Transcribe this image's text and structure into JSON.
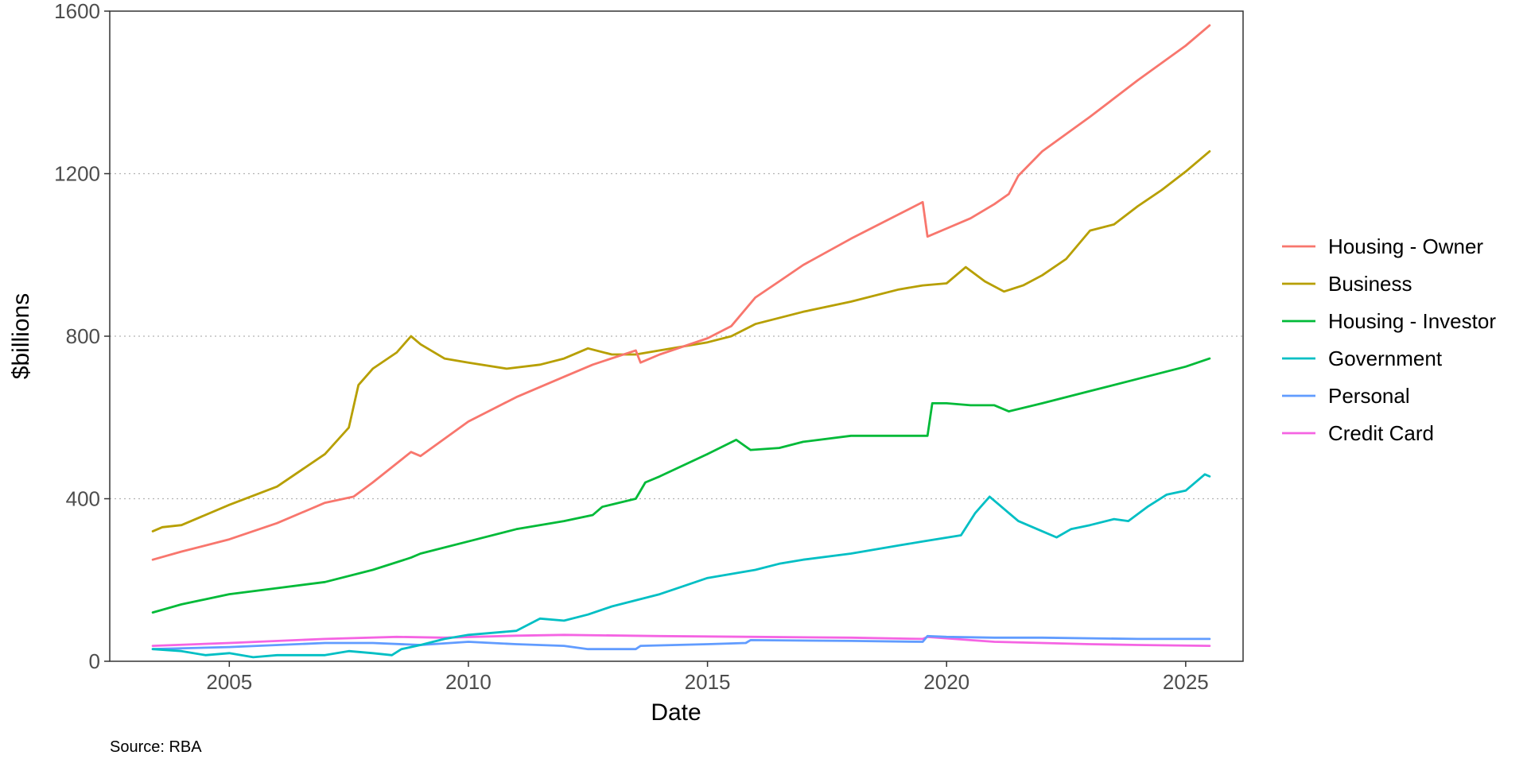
{
  "chart_data": {
    "type": "line",
    "title": "",
    "xlabel": "Date",
    "ylabel": "$billions",
    "caption": "Source: RBA",
    "xlim": [
      2002.5,
      2026.2
    ],
    "ylim": [
      0,
      1600
    ],
    "x_ticks": [
      2005,
      2010,
      2015,
      2020,
      2025
    ],
    "y_ticks": [
      0,
      400,
      800,
      1200,
      1600
    ],
    "grid": {
      "major_y": true,
      "style": "dotted"
    },
    "legend": {
      "position": "right"
    },
    "series": [
      {
        "name": "Housing - Owner",
        "color": "#F8766D",
        "points": [
          [
            2003.4,
            250
          ],
          [
            2004.0,
            270
          ],
          [
            2005.0,
            300
          ],
          [
            2006.0,
            340
          ],
          [
            2007.0,
            390
          ],
          [
            2007.6,
            405
          ],
          [
            2008.0,
            440
          ],
          [
            2008.8,
            515
          ],
          [
            2009.0,
            505
          ],
          [
            2010.0,
            590
          ],
          [
            2011.0,
            650
          ],
          [
            2012.0,
            700
          ],
          [
            2012.6,
            730
          ],
          [
            2013.5,
            765
          ],
          [
            2013.6,
            735
          ],
          [
            2014.0,
            755
          ],
          [
            2015.0,
            795
          ],
          [
            2015.5,
            825
          ],
          [
            2016.0,
            895
          ],
          [
            2016.5,
            935
          ],
          [
            2017.0,
            975
          ],
          [
            2018.0,
            1040
          ],
          [
            2019.0,
            1100
          ],
          [
            2019.5,
            1130
          ],
          [
            2019.6,
            1045
          ],
          [
            2020.0,
            1065
          ],
          [
            2020.5,
            1090
          ],
          [
            2021.0,
            1125
          ],
          [
            2021.3,
            1150
          ],
          [
            2021.5,
            1195
          ],
          [
            2022.0,
            1255
          ],
          [
            2023.0,
            1340
          ],
          [
            2024.0,
            1430
          ],
          [
            2025.0,
            1515
          ],
          [
            2025.5,
            1565
          ]
        ]
      },
      {
        "name": "Business",
        "color": "#B79F00",
        "points": [
          [
            2003.4,
            320
          ],
          [
            2003.6,
            330
          ],
          [
            2004.0,
            335
          ],
          [
            2005.0,
            385
          ],
          [
            2006.0,
            430
          ],
          [
            2007.0,
            510
          ],
          [
            2007.5,
            575
          ],
          [
            2007.7,
            680
          ],
          [
            2008.0,
            720
          ],
          [
            2008.5,
            760
          ],
          [
            2008.8,
            800
          ],
          [
            2009.0,
            780
          ],
          [
            2009.5,
            745
          ],
          [
            2010.0,
            735
          ],
          [
            2010.8,
            720
          ],
          [
            2011.5,
            730
          ],
          [
            2012.0,
            745
          ],
          [
            2012.5,
            770
          ],
          [
            2013.0,
            755
          ],
          [
            2013.5,
            755
          ],
          [
            2014.0,
            765
          ],
          [
            2015.0,
            785
          ],
          [
            2015.5,
            800
          ],
          [
            2016.0,
            830
          ],
          [
            2017.0,
            860
          ],
          [
            2018.0,
            885
          ],
          [
            2019.0,
            915
          ],
          [
            2019.5,
            925
          ],
          [
            2020.0,
            930
          ],
          [
            2020.4,
            970
          ],
          [
            2020.8,
            935
          ],
          [
            2021.2,
            910
          ],
          [
            2021.6,
            925
          ],
          [
            2022.0,
            950
          ],
          [
            2022.5,
            990
          ],
          [
            2023.0,
            1060
          ],
          [
            2023.5,
            1075
          ],
          [
            2024.0,
            1120
          ],
          [
            2024.5,
            1160
          ],
          [
            2025.0,
            1205
          ],
          [
            2025.5,
            1255
          ]
        ]
      },
      {
        "name": "Housing - Investor",
        "color": "#00BA38",
        "points": [
          [
            2003.4,
            120
          ],
          [
            2004.0,
            140
          ],
          [
            2005.0,
            165
          ],
          [
            2006.0,
            180
          ],
          [
            2007.0,
            195
          ],
          [
            2008.0,
            225
          ],
          [
            2008.8,
            255
          ],
          [
            2009.0,
            265
          ],
          [
            2010.0,
            295
          ],
          [
            2011.0,
            325
          ],
          [
            2012.0,
            345
          ],
          [
            2012.6,
            360
          ],
          [
            2012.8,
            380
          ],
          [
            2013.5,
            400
          ],
          [
            2013.7,
            440
          ],
          [
            2014.0,
            455
          ],
          [
            2015.0,
            510
          ],
          [
            2015.6,
            545
          ],
          [
            2015.9,
            520
          ],
          [
            2016.5,
            525
          ],
          [
            2017.0,
            540
          ],
          [
            2018.0,
            555
          ],
          [
            2019.0,
            555
          ],
          [
            2019.6,
            555
          ],
          [
            2019.7,
            635
          ],
          [
            2020.0,
            635
          ],
          [
            2020.5,
            630
          ],
          [
            2021.0,
            630
          ],
          [
            2021.3,
            615
          ],
          [
            2022.0,
            635
          ],
          [
            2023.0,
            665
          ],
          [
            2024.0,
            695
          ],
          [
            2025.0,
            725
          ],
          [
            2025.5,
            745
          ]
        ]
      },
      {
        "name": "Government",
        "color": "#00BFC4",
        "points": [
          [
            2003.4,
            30
          ],
          [
            2004.0,
            25
          ],
          [
            2004.5,
            15
          ],
          [
            2005.0,
            20
          ],
          [
            2005.5,
            10
          ],
          [
            2006.0,
            15
          ],
          [
            2007.0,
            15
          ],
          [
            2007.5,
            25
          ],
          [
            2008.0,
            20
          ],
          [
            2008.4,
            15
          ],
          [
            2008.6,
            30
          ],
          [
            2009.0,
            40
          ],
          [
            2009.5,
            55
          ],
          [
            2010.0,
            65
          ],
          [
            2011.0,
            75
          ],
          [
            2011.5,
            105
          ],
          [
            2012.0,
            100
          ],
          [
            2012.5,
            115
          ],
          [
            2013.0,
            135
          ],
          [
            2014.0,
            165
          ],
          [
            2014.5,
            185
          ],
          [
            2015.0,
            205
          ],
          [
            2016.0,
            225
          ],
          [
            2016.5,
            240
          ],
          [
            2017.0,
            250
          ],
          [
            2018.0,
            265
          ],
          [
            2019.0,
            285
          ],
          [
            2019.5,
            295
          ],
          [
            2020.3,
            310
          ],
          [
            2020.6,
            365
          ],
          [
            2020.9,
            405
          ],
          [
            2021.2,
            375
          ],
          [
            2021.5,
            345
          ],
          [
            2022.0,
            320
          ],
          [
            2022.3,
            305
          ],
          [
            2022.6,
            325
          ],
          [
            2023.0,
            335
          ],
          [
            2023.5,
            350
          ],
          [
            2023.8,
            345
          ],
          [
            2024.2,
            380
          ],
          [
            2024.6,
            410
          ],
          [
            2025.0,
            420
          ],
          [
            2025.4,
            460
          ],
          [
            2025.5,
            455
          ]
        ]
      },
      {
        "name": "Personal",
        "color": "#619CFF",
        "points": [
          [
            2003.4,
            30
          ],
          [
            2005.0,
            35
          ],
          [
            2007.0,
            45
          ],
          [
            2008.0,
            45
          ],
          [
            2009.0,
            40
          ],
          [
            2010.0,
            48
          ],
          [
            2011.0,
            42
          ],
          [
            2012.0,
            38
          ],
          [
            2012.5,
            30
          ],
          [
            2013.5,
            30
          ],
          [
            2013.6,
            38
          ],
          [
            2015.0,
            42
          ],
          [
            2015.8,
            45
          ],
          [
            2015.9,
            52
          ],
          [
            2018.0,
            50
          ],
          [
            2019.5,
            48
          ],
          [
            2019.6,
            62
          ],
          [
            2020.0,
            60
          ],
          [
            2021.0,
            58
          ],
          [
            2022.0,
            58
          ],
          [
            2024.0,
            55
          ],
          [
            2025.5,
            55
          ]
        ]
      },
      {
        "name": "Credit Card",
        "color": "#F564E3",
        "points": [
          [
            2003.4,
            38
          ],
          [
            2005.0,
            45
          ],
          [
            2007.0,
            55
          ],
          [
            2008.5,
            60
          ],
          [
            2009.5,
            58
          ],
          [
            2011.0,
            63
          ],
          [
            2012.0,
            65
          ],
          [
            2014.0,
            62
          ],
          [
            2016.0,
            60
          ],
          [
            2018.0,
            58
          ],
          [
            2019.5,
            55
          ],
          [
            2019.6,
            60
          ],
          [
            2020.5,
            52
          ],
          [
            2021.0,
            48
          ],
          [
            2022.0,
            45
          ],
          [
            2023.0,
            42
          ],
          [
            2024.0,
            40
          ],
          [
            2025.5,
            38
          ]
        ]
      }
    ]
  }
}
